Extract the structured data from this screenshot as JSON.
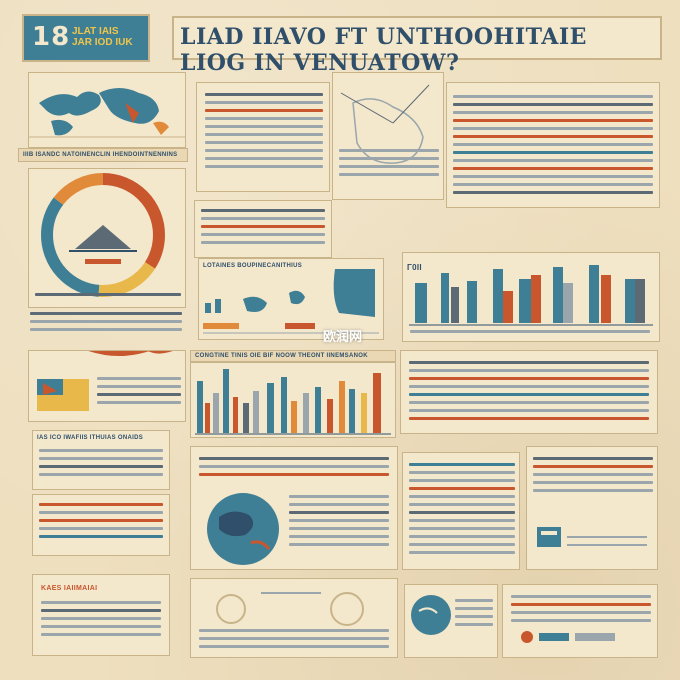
{
  "header": {
    "logo_number": "18",
    "logo_subtitle_top": "JLAT IAIS",
    "logo_subtitle_bottom": "JAR IOD IUK",
    "title": "LIAD IIAVO FT UNTHOOHITAIE LIOG IN VENUATOW?"
  },
  "captions": {
    "map_strip": "IIIB ISANDC NATOINENCLIN IHENDOINTNENNINS",
    "mid_chart": "LOTAINES BOUPINECANITHIUS",
    "lower_strip": "CONGTINE TINIS OIE BIF NOOW THEONT IINEMSANOK",
    "left_lower": "IAS ICO IWAFIIS ITHUIAS ONAIDS",
    "bottom_left": "KAES IAIIMAIAI",
    "bar_chart_label": "Γ0II"
  },
  "watermark": "欧润网",
  "colors": {
    "accent_blue": "#3f7f95",
    "accent_red": "#c9572e",
    "accent_orange": "#e08a3a",
    "accent_yellow": "#e9b84a",
    "paper": "#eedfbf"
  },
  "icons": [
    "world-map-icon",
    "donut-gauge-icon",
    "globe-icon",
    "flag-icon"
  ]
}
